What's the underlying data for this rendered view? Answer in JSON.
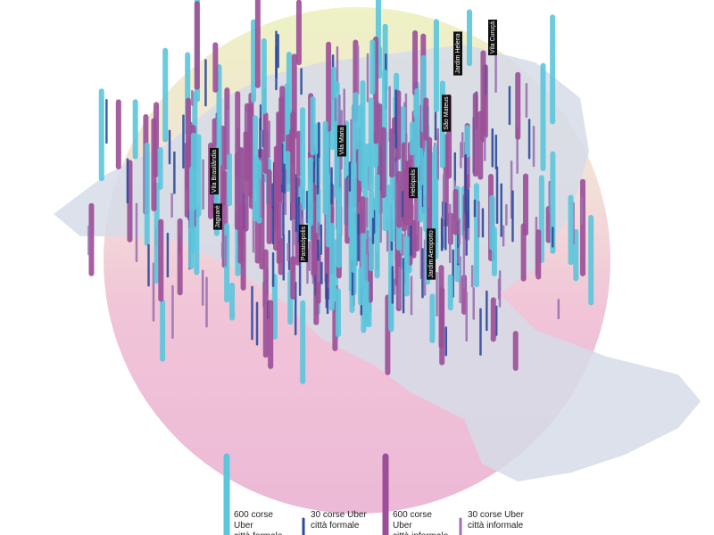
{
  "place_labels": [
    "Vila Brasilândia",
    "Jaguaré",
    "Vila Maria",
    "Paraisópolis",
    "Heliópolis",
    "Jardim Aeroporto",
    "São Mateus",
    "Jardim Helena",
    "Vila Curuçá"
  ],
  "legend": {
    "items": [
      {
        "lines": [
          "600 corse",
          "Uber",
          "città formale"
        ],
        "color": "#5cc6dc"
      },
      {
        "lines": [
          "30 corse Uber",
          "città formale"
        ],
        "color": "#2e4c9e"
      },
      {
        "lines": [
          "600 corse",
          "Uber",
          "città informale"
        ],
        "color": "#9c4f98"
      },
      {
        "lines": [
          "30 corse Uber",
          "città informale"
        ],
        "color": "#9b72b2"
      }
    ]
  }
}
